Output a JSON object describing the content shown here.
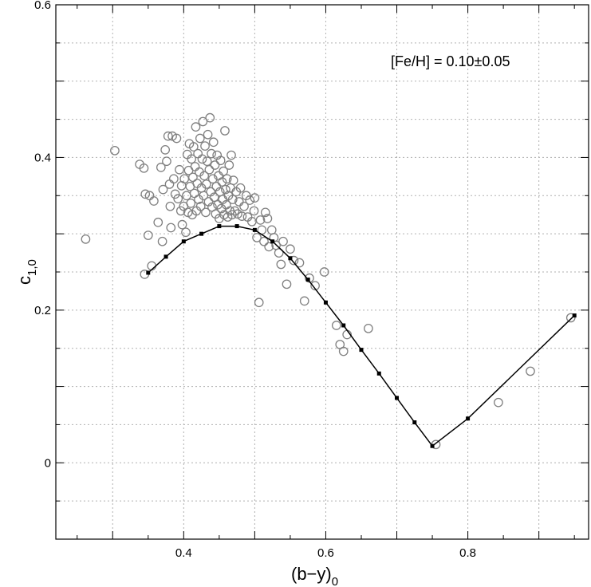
{
  "chart_data": {
    "type": "scatter",
    "xlabel": "(b−y)",
    "xlabel_sub": "0",
    "ylabel": "c",
    "ylabel_sub": "1,0",
    "annotation": "[Fe/H] = 0.10±0.05",
    "xlim": [
      0.22,
      0.97
    ],
    "ylim": [
      -0.1,
      0.6
    ],
    "grid": true,
    "x_ticks": [
      0.4,
      0.6,
      0.8
    ],
    "x_tick_labels": [
      "0.4",
      "0.6",
      "0.8"
    ],
    "y_ticks": [
      0,
      0.2,
      0.4,
      0.6
    ],
    "y_tick_labels": [
      "0",
      "0.2",
      "0.4",
      "0.6"
    ],
    "colors": {
      "points": "#808080",
      "line": "#000000",
      "grid": "#b0b0b0"
    },
    "series": [
      {
        "kind": "line",
        "x": [
          0.35,
          0.375,
          0.4,
          0.425,
          0.45,
          0.475,
          0.5,
          0.525,
          0.55,
          0.575,
          0.6,
          0.625,
          0.65,
          0.675,
          0.7,
          0.725,
          0.75,
          0.8,
          0.95
        ],
        "y": [
          0.249,
          0.27,
          0.29,
          0.3,
          0.31,
          0.31,
          0.305,
          0.29,
          0.268,
          0.24,
          0.21,
          0.18,
          0.148,
          0.117,
          0.085,
          0.053,
          0.022,
          0.058,
          0.193
        ]
      },
      {
        "kind": "scatter",
        "points": [
          [
            0.262,
            0.293
          ],
          [
            0.303,
            0.409
          ],
          [
            0.338,
            0.391
          ],
          [
            0.344,
            0.386
          ],
          [
            0.345,
            0.247
          ],
          [
            0.346,
            0.352
          ],
          [
            0.35,
            0.298
          ],
          [
            0.352,
            0.35
          ],
          [
            0.355,
            0.258
          ],
          [
            0.358,
            0.343
          ],
          [
            0.364,
            0.315
          ],
          [
            0.368,
            0.387
          ],
          [
            0.37,
            0.29
          ],
          [
            0.371,
            0.358
          ],
          [
            0.374,
            0.41
          ],
          [
            0.376,
            0.395
          ],
          [
            0.378,
            0.428
          ],
          [
            0.38,
            0.365
          ],
          [
            0.381,
            0.336
          ],
          [
            0.382,
            0.308
          ],
          [
            0.384,
            0.428
          ],
          [
            0.386,
            0.372
          ],
          [
            0.388,
            0.352
          ],
          [
            0.39,
            0.425
          ],
          [
            0.392,
            0.346
          ],
          [
            0.394,
            0.384
          ],
          [
            0.396,
            0.33
          ],
          [
            0.397,
            0.363
          ],
          [
            0.398,
            0.312
          ],
          [
            0.4,
            0.336
          ],
          [
            0.401,
            0.372
          ],
          [
            0.403,
            0.302
          ],
          [
            0.404,
            0.35
          ],
          [
            0.405,
            0.404
          ],
          [
            0.406,
            0.328
          ],
          [
            0.407,
            0.383
          ],
          [
            0.408,
            0.418
          ],
          [
            0.409,
            0.362
          ],
          [
            0.41,
            0.34
          ],
          [
            0.411,
            0.398
          ],
          [
            0.412,
            0.325
          ],
          [
            0.413,
            0.374
          ],
          [
            0.414,
            0.414
          ],
          [
            0.415,
            0.353
          ],
          [
            0.416,
            0.388
          ],
          [
            0.417,
            0.44
          ],
          [
            0.418,
            0.33
          ],
          [
            0.419,
            0.366
          ],
          [
            0.42,
            0.405
          ],
          [
            0.421,
            0.345
          ],
          [
            0.422,
            0.381
          ],
          [
            0.423,
            0.425
          ],
          [
            0.424,
            0.336
          ],
          [
            0.425,
            0.36
          ],
          [
            0.426,
            0.398
          ],
          [
            0.427,
            0.447
          ],
          [
            0.428,
            0.35
          ],
          [
            0.429,
            0.376
          ],
          [
            0.43,
            0.415
          ],
          [
            0.431,
            0.328
          ],
          [
            0.432,
            0.365
          ],
          [
            0.433,
            0.395
          ],
          [
            0.434,
            0.43
          ],
          [
            0.435,
            0.342
          ],
          [
            0.436,
            0.384
          ],
          [
            0.437,
            0.452
          ],
          [
            0.438,
            0.355
          ],
          [
            0.439,
            0.405
          ],
          [
            0.44,
            0.335
          ],
          [
            0.441,
            0.372
          ],
          [
            0.442,
            0.42
          ],
          [
            0.443,
            0.348
          ],
          [
            0.444,
            0.39
          ],
          [
            0.445,
            0.326
          ],
          [
            0.446,
            0.362
          ],
          [
            0.447,
            0.403
          ],
          [
            0.448,
            0.338
          ],
          [
            0.449,
            0.376
          ],
          [
            0.45,
            0.32
          ],
          [
            0.451,
            0.355
          ],
          [
            0.452,
            0.396
          ],
          [
            0.453,
            0.333
          ],
          [
            0.454,
            0.368
          ],
          [
            0.455,
            0.345
          ],
          [
            0.456,
            0.382
          ],
          [
            0.457,
            0.325
          ],
          [
            0.458,
            0.435
          ],
          [
            0.459,
            0.358
          ],
          [
            0.46,
            0.338
          ],
          [
            0.461,
            0.372
          ],
          [
            0.462,
            0.322
          ],
          [
            0.463,
            0.35
          ],
          [
            0.464,
            0.39
          ],
          [
            0.465,
            0.33
          ],
          [
            0.466,
            0.36
          ],
          [
            0.467,
            0.403
          ],
          [
            0.468,
            0.325
          ],
          [
            0.469,
            0.345
          ],
          [
            0.47,
            0.37
          ],
          [
            0.472,
            0.33
          ],
          [
            0.474,
            0.355
          ],
          [
            0.476,
            0.326
          ],
          [
            0.478,
            0.342
          ],
          [
            0.48,
            0.36
          ],
          [
            0.482,
            0.323
          ],
          [
            0.485,
            0.336
          ],
          [
            0.488,
            0.35
          ],
          [
            0.49,
            0.322
          ],
          [
            0.493,
            0.344
          ],
          [
            0.496,
            0.316
          ],
          [
            0.499,
            0.33
          ],
          [
            0.5,
            0.347
          ],
          [
            0.503,
            0.295
          ],
          [
            0.506,
            0.21
          ],
          [
            0.508,
            0.318
          ],
          [
            0.51,
            0.305
          ],
          [
            0.513,
            0.29
          ],
          [
            0.515,
            0.328
          ],
          [
            0.518,
            0.32
          ],
          [
            0.52,
            0.283
          ],
          [
            0.524,
            0.305
          ],
          [
            0.527,
            0.295
          ],
          [
            0.53,
            0.285
          ],
          [
            0.534,
            0.275
          ],
          [
            0.537,
            0.26
          ],
          [
            0.54,
            0.29
          ],
          [
            0.545,
            0.234
          ],
          [
            0.55,
            0.28
          ],
          [
            0.555,
            0.265
          ],
          [
            0.563,
            0.262
          ],
          [
            0.57,
            0.212
          ],
          [
            0.577,
            0.242
          ],
          [
            0.585,
            0.232
          ],
          [
            0.598,
            0.25
          ],
          [
            0.615,
            0.18
          ],
          [
            0.62,
            0.155
          ],
          [
            0.625,
            0.146
          ],
          [
            0.63,
            0.168
          ],
          [
            0.66,
            0.176
          ],
          [
            0.755,
            0.024
          ],
          [
            0.843,
            0.079
          ],
          [
            0.888,
            0.12
          ],
          [
            0.945,
            0.19
          ]
        ]
      }
    ]
  }
}
